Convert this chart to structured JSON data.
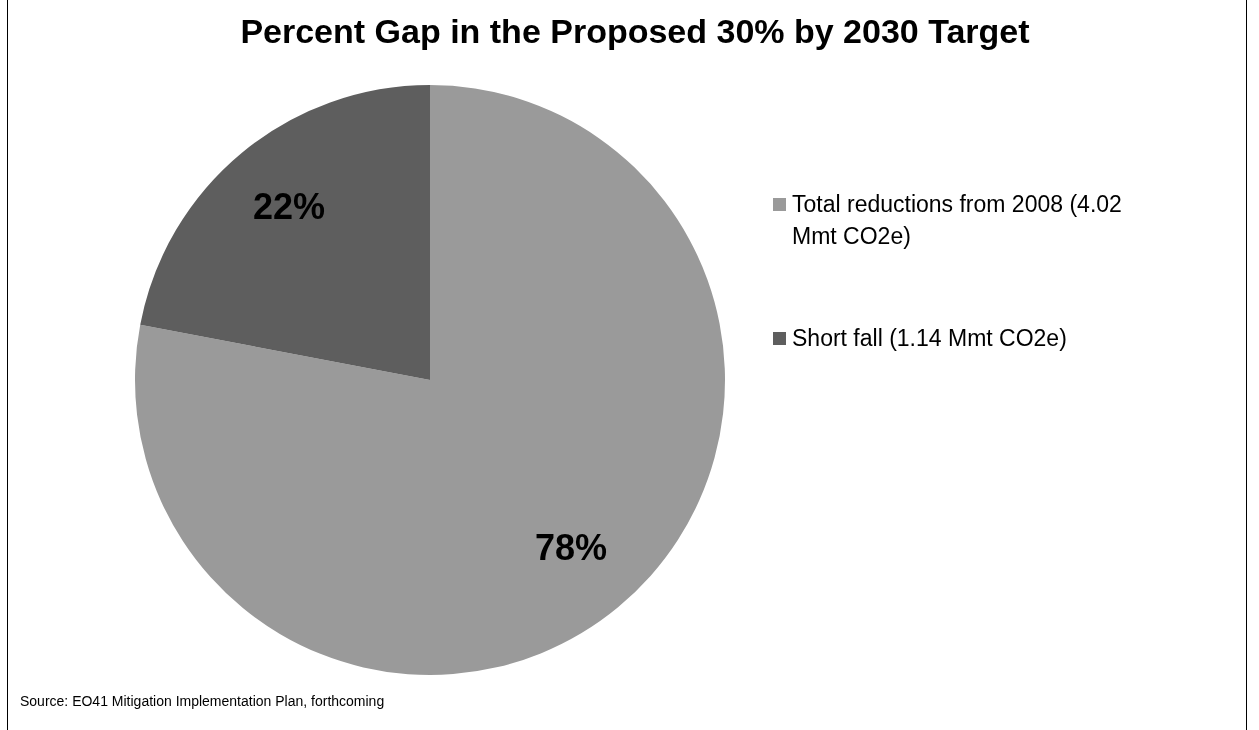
{
  "chart_data": {
    "type": "pie",
    "title": "Percent Gap in the Proposed 30% by 2030 Target",
    "categories": [
      "Total reductions from 2008 (4.02 Mmt CO2e)",
      "Short fall (1.14 Mmt CO2e)"
    ],
    "values": [
      78,
      22
    ],
    "colors": [
      "#9a9a9a",
      "#5e5e5e"
    ],
    "value_labels": [
      "78%",
      "22%"
    ],
    "legend": "right",
    "annotations": [
      "Source:  EO41 Mitigation Implementation Plan, forthcoming"
    ]
  }
}
